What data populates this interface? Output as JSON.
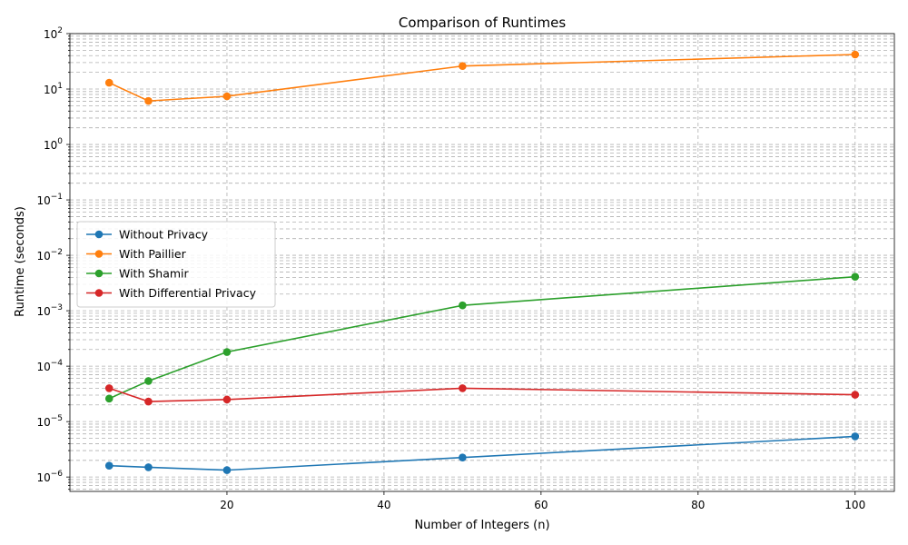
{
  "chart_data": {
    "type": "line",
    "title": "Comparison of Runtimes",
    "xlabel": "Number of Integers (n)",
    "ylabel": "Runtime (seconds)",
    "yscale": "log",
    "xlim": [
      0,
      105
    ],
    "ylim": [
      5.5e-07,
      100
    ],
    "x_ticks": [
      20,
      40,
      60,
      80,
      100
    ],
    "x_tick_labels": [
      "20",
      "40",
      "60",
      "80",
      "100"
    ],
    "y_ticks": [
      1e-06,
      1e-05,
      0.0001,
      0.001,
      0.01,
      0.1,
      1,
      10,
      100
    ],
    "y_tick_labels": [
      {
        "base": "10",
        "exp": "−6"
      },
      {
        "base": "10",
        "exp": "−5"
      },
      {
        "base": "10",
        "exp": "−4"
      },
      {
        "base": "10",
        "exp": "−3"
      },
      {
        "base": "10",
        "exp": "−2"
      },
      {
        "base": "10",
        "exp": "−1"
      },
      {
        "base": "10",
        "exp": "0"
      },
      {
        "base": "10",
        "exp": "1"
      },
      {
        "base": "10",
        "exp": "2"
      }
    ],
    "grid": true,
    "grid_minor": true,
    "legend_position": "center-left",
    "x": [
      5,
      10,
      20,
      50,
      100
    ],
    "series": [
      {
        "name": "Without Privacy",
        "color": "#1f77b4",
        "values": [
          1.6e-06,
          1.5e-06,
          1.33e-06,
          2.25e-06,
          5.4e-06
        ]
      },
      {
        "name": "With Paillier",
        "color": "#ff7f0e",
        "values": [
          13,
          6.1,
          7.4,
          26,
          42
        ]
      },
      {
        "name": "With Shamir",
        "color": "#2ca02c",
        "values": [
          2.6e-05,
          5.4e-05,
          0.00018,
          0.00125,
          0.0041
        ]
      },
      {
        "name": "With Differential Privacy",
        "color": "#d62728",
        "values": [
          4e-05,
          2.3e-05,
          2.5e-05,
          4e-05,
          3.05e-05
        ]
      }
    ]
  }
}
